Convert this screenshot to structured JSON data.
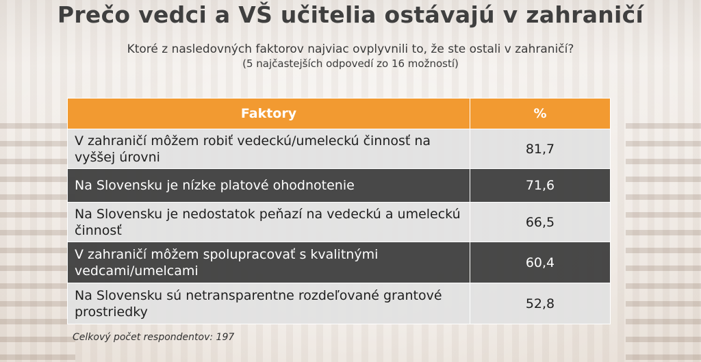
{
  "title": "Prečo vedci a VŠ učitelia ostávajú v zahraničí",
  "subtitle": "Ktoré z nasledovných faktorov najviac ovplyvnili to, že ste ostali v zahraničí?",
  "subnote": "(5 najčastejších odpovedí zo 16 možností)",
  "table": {
    "headers": {
      "factor": "Faktory",
      "percent": "%"
    },
    "rows": [
      {
        "factor": "V zahraničí môžem robiť vedeckú/umeleckú činnosť na vyššej úrovni",
        "value": "81,7"
      },
      {
        "factor": "Na Slovensku je nízke platové ohodnotenie",
        "value": "71,6"
      },
      {
        "factor": "Na Slovensku je nedostatok peňazí na vedeckú a umeleckú činnosť",
        "value": "66,5"
      },
      {
        "factor": "V zahraničí môžem spolupracovať s kvalitnými vedcami/umelcami",
        "value": "60,4"
      },
      {
        "factor": "Na Slovensku sú netransparentne rozdeľované grantové prostriedky",
        "value": "52,8"
      }
    ]
  },
  "footnote": "Celkový počet respondentov: 197",
  "colors": {
    "header": "#f29a31",
    "dark_row": "#424242",
    "light_row": "#e2e2e2"
  }
}
